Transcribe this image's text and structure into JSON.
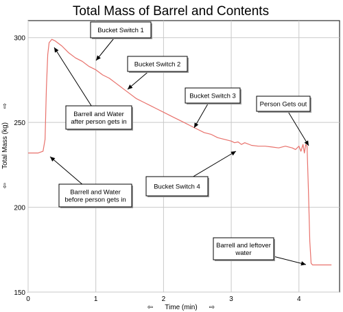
{
  "chart_data": {
    "type": "line",
    "title": "Total Mass of Barrel and Contents",
    "xlabel": "Time (min)",
    "ylabel": "Total Mass (kg)",
    "xlim": [
      0,
      4.6
    ],
    "ylim": [
      150,
      310
    ],
    "xticks": [
      0,
      1,
      2,
      3,
      4
    ],
    "yticks": [
      150,
      200,
      250,
      300
    ],
    "grid": true,
    "line_color": "#e8706a",
    "series": [
      {
        "x": [
          0.0,
          0.15,
          0.22,
          0.25,
          0.27,
          0.29,
          0.31,
          0.35,
          0.4,
          0.5,
          0.6,
          0.7,
          0.8,
          0.9,
          1.0,
          1.1,
          1.2,
          1.3,
          1.4,
          1.5,
          1.6,
          1.7,
          1.8,
          1.9,
          2.0,
          2.1,
          2.2,
          2.3,
          2.4,
          2.5,
          2.6,
          2.7,
          2.8,
          2.9,
          3.0,
          3.05,
          3.1,
          3.15,
          3.2,
          3.3,
          3.4,
          3.5,
          3.6,
          3.7,
          3.8,
          3.9,
          3.95,
          4.0,
          4.03,
          4.06,
          4.08,
          4.1,
          4.12,
          4.14,
          4.16,
          4.18,
          4.2,
          4.3,
          4.4,
          4.48
        ],
        "y": [
          232,
          232,
          233,
          240,
          270,
          290,
          297,
          299,
          298,
          295,
          291,
          288,
          286,
          283,
          281,
          278,
          276,
          273,
          270,
          267,
          264,
          262,
          260,
          258,
          256,
          254,
          252,
          250,
          248,
          246,
          244,
          243,
          241,
          240,
          239,
          238,
          238.5,
          237,
          238,
          236.5,
          236,
          236,
          235.5,
          235,
          236,
          235,
          234,
          236,
          233,
          237,
          232,
          237,
          236,
          210,
          180,
          167,
          166,
          166,
          166,
          166
        ]
      }
    ],
    "annotations": [
      {
        "lines": [
          "Bucket Switch 1"
        ],
        "x": 1.0,
        "y": 286
      },
      {
        "lines": [
          "Bucket Switch 2"
        ],
        "x": 1.45,
        "y": 270
      },
      {
        "lines": [
          "Bucket Switch 3"
        ],
        "x": 2.45,
        "y": 247
      },
      {
        "lines": [
          "Person Gets out"
        ],
        "x": 4.15,
        "y": 237
      },
      {
        "lines": [
          "Barrell and Water",
          "after person gets in"
        ],
        "x": 0.4,
        "y": 297
      },
      {
        "lines": [
          "Barrell and Water",
          "before person gets in"
        ],
        "x": 0.33,
        "y": 234
      },
      {
        "lines": [
          "Bucket Switch 4"
        ],
        "x": 3.05,
        "y": 237
      },
      {
        "lines": [
          "Barrell and leftover",
          "water"
        ],
        "x": 4.12,
        "y": 166
      }
    ]
  }
}
